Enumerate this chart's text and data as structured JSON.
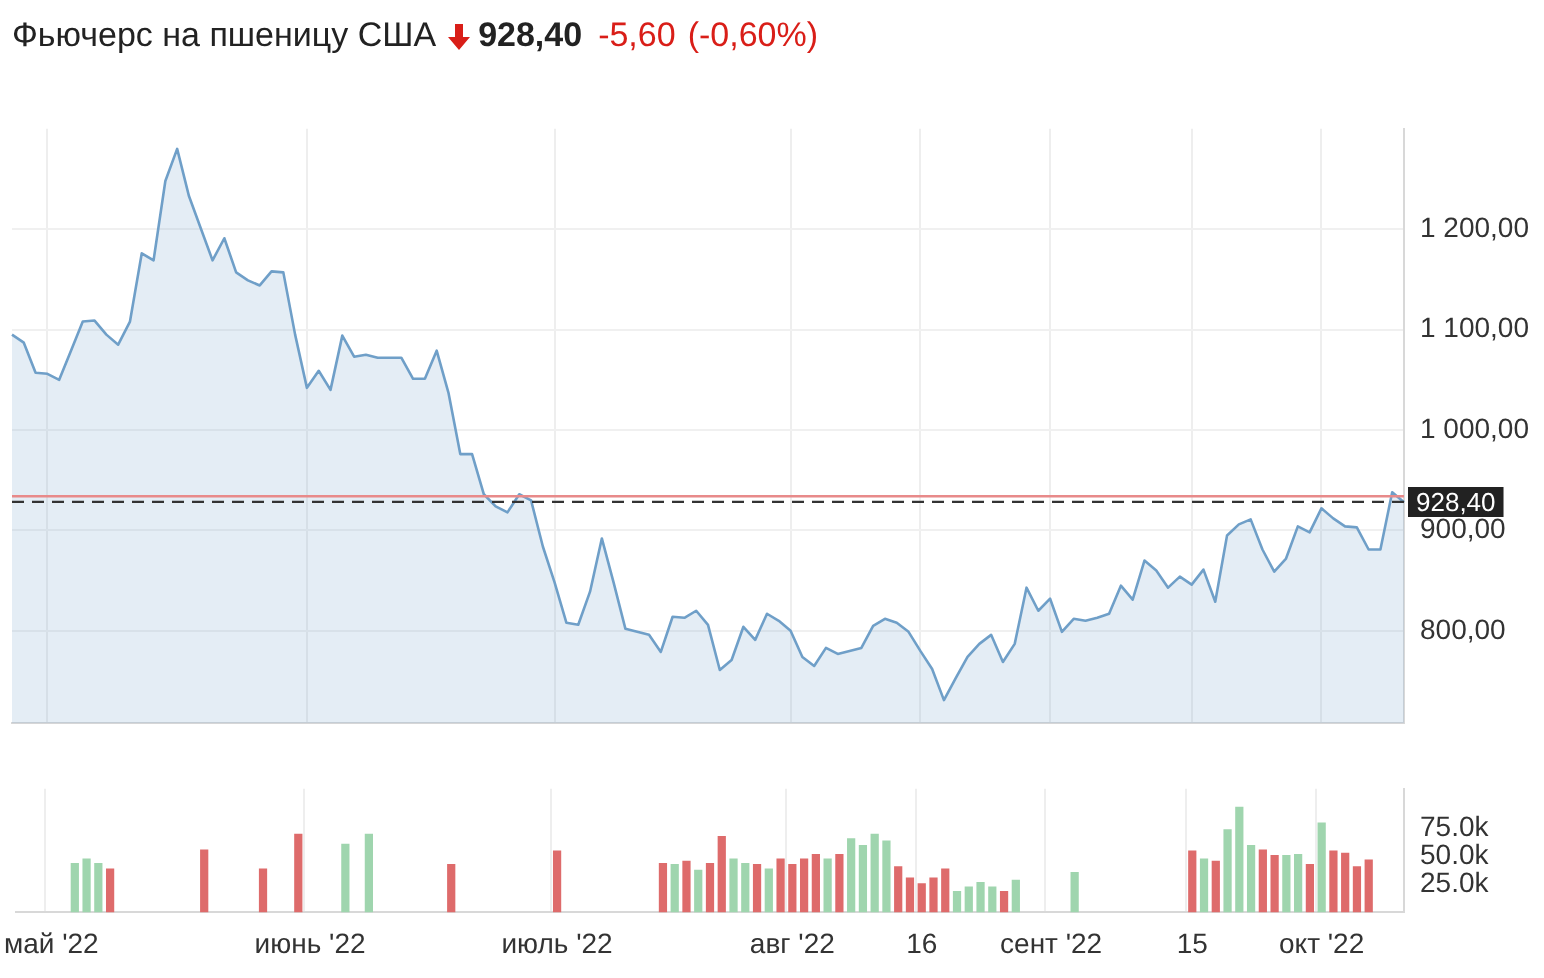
{
  "chart_data": [
    {
      "type": "area",
      "title": "Фьючерс на пшеницу США",
      "annotations": [
        "928,40",
        "-5,60",
        "(-0,60%)"
      ],
      "categories": [
        null,
        null,
        null,
        null,
        null,
        null,
        null,
        null,
        null,
        null,
        null,
        null,
        null,
        null,
        null,
        null,
        null,
        null,
        null,
        null,
        null,
        null,
        null,
        null,
        null,
        null,
        null,
        null,
        null,
        null,
        null,
        null,
        null,
        null,
        null,
        null,
        null,
        null,
        null,
        null,
        null,
        null,
        null,
        null,
        null,
        null,
        null,
        null,
        null,
        null,
        null,
        null,
        null,
        null,
        null,
        null,
        null,
        null,
        null,
        null,
        null,
        null,
        null,
        null,
        null,
        null,
        null,
        null,
        null,
        null,
        null,
        null,
        null,
        null,
        null,
        null,
        null,
        null,
        null,
        null,
        null,
        null,
        null,
        null,
        null,
        null,
        null,
        null,
        null,
        null,
        null,
        null,
        null,
        null,
        null,
        null,
        null,
        null,
        null,
        null,
        null,
        null,
        null,
        null,
        null,
        null,
        null,
        null,
        null,
        null,
        null,
        null,
        null,
        null,
        null,
        null,
        null,
        null,
        null
      ],
      "values": [
        1095,
        1087,
        1057,
        1056,
        1050,
        1079,
        1108,
        1109,
        1095,
        1085,
        1108,
        1176,
        1169,
        1248,
        1280,
        1233,
        1201,
        1169,
        1191,
        1157,
        1149,
        1144,
        1158,
        1157,
        1095,
        1042,
        1059,
        1040,
        1094,
        1073,
        1075,
        1072,
        1072,
        1072,
        1051,
        1051,
        1079,
        1037,
        976,
        976,
        936,
        924,
        918,
        936,
        930,
        884,
        848,
        808,
        806,
        839,
        892,
        848,
        802,
        799,
        796,
        779,
        814,
        813,
        820,
        806,
        761,
        771,
        804,
        791,
        817,
        810,
        800,
        774,
        765,
        783,
        777,
        780,
        783,
        805,
        812,
        808,
        799,
        780,
        762,
        731,
        753,
        774,
        787,
        796,
        769,
        787,
        843,
        820,
        832,
        799,
        812,
        810,
        813,
        817,
        845,
        831,
        870,
        860,
        843,
        854,
        846,
        861,
        829,
        895,
        906,
        911,
        881,
        859,
        872,
        904,
        898,
        922,
        912,
        904,
        903,
        881,
        881,
        938,
        928
      ],
      "color": "#6f9fc8",
      "ylim": [
        708,
        1300
      ],
      "yticks": [
        {
          "value": 800,
          "label": "800,00"
        },
        {
          "value": 900,
          "label": "900,00"
        },
        {
          "value": 1000,
          "label": "1 000,00"
        },
        {
          "value": 1100,
          "label": "1 100,00"
        },
        {
          "value": 1200,
          "label": "1 200,00"
        }
      ],
      "grid": true,
      "tick_labels": "y",
      "ref_lines": [
        {
          "axis": "y",
          "value": 934,
          "color": "#e88a8a",
          "line_style": "solid"
        },
        {
          "axis": "y",
          "value": 928.4,
          "label": "928,40",
          "color": "#333333",
          "line_style": "dashed"
        }
      ]
    },
    {
      "type": "bar",
      "categories": [
        null,
        null,
        null,
        "май '22",
        null,
        null,
        null,
        null,
        null,
        null,
        null,
        null,
        null,
        null,
        null,
        null,
        null,
        null,
        null,
        null,
        null,
        null,
        null,
        null,
        null,
        "июнь '22",
        null,
        null,
        null,
        null,
        null,
        null,
        null,
        null,
        null,
        null,
        null,
        null,
        null,
        null,
        null,
        null,
        null,
        null,
        null,
        null,
        "июль '22",
        null,
        null,
        null,
        null,
        null,
        null,
        null,
        null,
        null,
        null,
        null,
        null,
        null,
        null,
        null,
        null,
        null,
        null,
        null,
        "авг '22",
        null,
        null,
        null,
        null,
        null,
        null,
        null,
        null,
        null,
        null,
        "16",
        null,
        null,
        null,
        null,
        null,
        null,
        null,
        null,
        null,
        null,
        "сент '22",
        null,
        null,
        null,
        null,
        null,
        null,
        null,
        null,
        null,
        null,
        null,
        "15",
        null,
        null,
        null,
        null,
        null,
        null,
        null,
        null,
        null,
        null,
        "окт '22",
        null,
        null,
        null,
        null,
        null,
        null,
        null
      ],
      "values": [
        null,
        null,
        null,
        null,
        null,
        44000,
        48000,
        44000,
        39000,
        null,
        null,
        null,
        null,
        null,
        null,
        null,
        56000,
        null,
        null,
        null,
        null,
        39000,
        null,
        null,
        70000,
        null,
        null,
        null,
        61000,
        null,
        70000,
        null,
        null,
        null,
        null,
        null,
        null,
        43000,
        null,
        null,
        null,
        null,
        null,
        null,
        null,
        null,
        55000,
        null,
        null,
        null,
        null,
        null,
        null,
        null,
        null,
        44000,
        43000,
        46000,
        38000,
        44000,
        68000,
        48000,
        44000,
        43000,
        39000,
        48000,
        43000,
        48000,
        52000,
        48000,
        52000,
        66000,
        60000,
        70000,
        64000,
        41000,
        31000,
        26000,
        31000,
        39000,
        19000,
        23000,
        27000,
        23000,
        19000,
        29000,
        null,
        null,
        null,
        null,
        36000,
        null,
        null,
        null,
        null,
        null,
        null,
        null,
        null,
        null,
        55000,
        48000,
        46000,
        74000,
        94000,
        60000,
        56000,
        51000,
        51000,
        52000,
        43000,
        80000,
        55000,
        53000,
        41000,
        47000,
        null,
        null,
        null
      ],
      "colors": [
        null,
        null,
        null,
        null,
        null,
        "#9fd5ae",
        "#9fd5ae",
        "#9fd5ae",
        "#de6b6b",
        null,
        null,
        null,
        null,
        null,
        null,
        null,
        "#de6b6b",
        null,
        null,
        null,
        null,
        "#de6b6b",
        null,
        null,
        "#de6b6b",
        null,
        null,
        null,
        "#9fd5ae",
        null,
        "#9fd5ae",
        null,
        null,
        null,
        null,
        null,
        null,
        "#de6b6b",
        null,
        null,
        null,
        null,
        null,
        null,
        null,
        null,
        "#de6b6b",
        null,
        null,
        null,
        null,
        null,
        null,
        null,
        null,
        "#de6b6b",
        "#9fd5ae",
        "#de6b6b",
        "#9fd5ae",
        "#de6b6b",
        "#de6b6b",
        "#9fd5ae",
        "#9fd5ae",
        "#de6b6b",
        "#9fd5ae",
        "#de6b6b",
        "#de6b6b",
        "#de6b6b",
        "#de6b6b",
        "#9fd5ae",
        "#de6b6b",
        "#9fd5ae",
        "#9fd5ae",
        "#9fd5ae",
        "#9fd5ae",
        "#de6b6b",
        "#de6b6b",
        "#de6b6b",
        "#de6b6b",
        "#de6b6b",
        "#9fd5ae",
        "#9fd5ae",
        "#9fd5ae",
        "#9fd5ae",
        "#de6b6b",
        "#9fd5ae",
        null,
        null,
        null,
        null,
        "#9fd5ae",
        null,
        null,
        null,
        null,
        null,
        null,
        null,
        null,
        null,
        "#de6b6b",
        "#9fd5ae",
        "#de6b6b",
        "#9fd5ae",
        "#9fd5ae",
        "#9fd5ae",
        "#de6b6b",
        "#de6b6b",
        "#9fd5ae",
        "#9fd5ae",
        "#de6b6b",
        "#9fd5ae",
        "#de6b6b",
        "#de6b6b",
        "#de6b6b",
        "#de6b6b",
        null,
        null,
        null
      ],
      "ylim": [
        0,
        110000
      ],
      "yticks": [
        {
          "value": 25000,
          "label": "25.0k"
        },
        {
          "value": 50000,
          "label": "50.0k"
        },
        {
          "value": 75000,
          "label": "75.0k"
        }
      ],
      "grid": "x"
    }
  ]
}
